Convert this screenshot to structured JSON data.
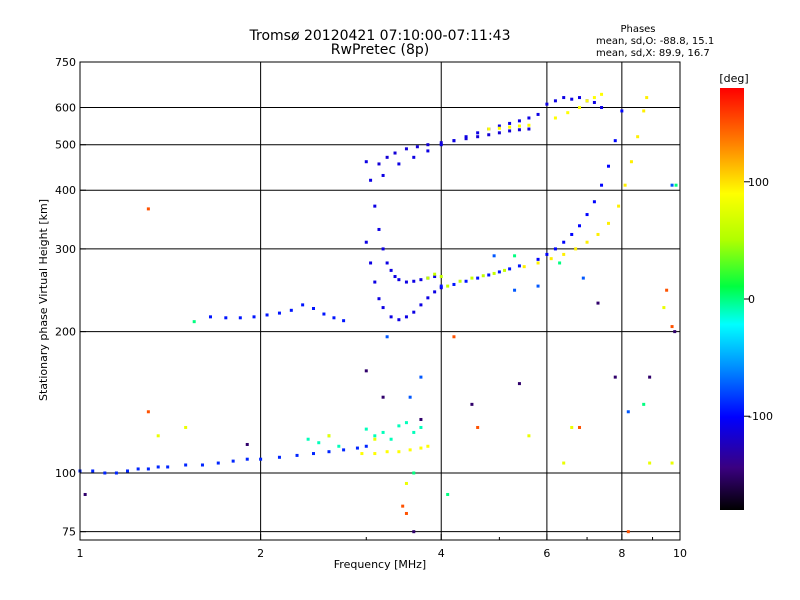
{
  "chart_data": {
    "type": "scatter",
    "title": "Tromsø 20120421 07:10:00-07:11:43",
    "subtitle": "RwPretec (8p)",
    "phases_header": "Phases",
    "phases_o": "mean, sd,O:  -88.8,  15.1",
    "phases_x": "mean, sd,X:   89.9,  16.7",
    "xlabel": "Frequency [MHz]",
    "ylabel": "Stationary phase Virtual Height [km]",
    "x_scale": "log",
    "y_scale": "log",
    "xlim": [
      1,
      10
    ],
    "ylim": [
      72,
      750
    ],
    "x_ticks": [
      {
        "v": 1,
        "label": "1"
      },
      {
        "v": 2,
        "label": "2"
      },
      {
        "v": 4,
        "label": "4"
      },
      {
        "v": 6,
        "label": "6"
      },
      {
        "v": 8,
        "label": "8"
      },
      {
        "v": 10,
        "label": "10"
      }
    ],
    "y_ticks": [
      {
        "v": 75,
        "label": "75"
      },
      {
        "v": 100,
        "label": "100"
      },
      {
        "v": 200,
        "label": "200"
      },
      {
        "v": 300,
        "label": "300"
      },
      {
        "v": 400,
        "label": "400"
      },
      {
        "v": 500,
        "label": "500"
      },
      {
        "v": 600,
        "label": "600"
      },
      {
        "v": 750,
        "label": "750"
      }
    ],
    "grid": true,
    "colorbar": {
      "label": "[deg]",
      "range": [
        -180,
        180
      ],
      "ticks": [
        {
          "v": 100,
          "label": "100"
        },
        {
          "v": 0,
          "label": "0"
        },
        {
          "v": -100,
          "label": "-100"
        }
      ]
    },
    "series": [
      {
        "phase": -90,
        "x": [
          1.0,
          1.05,
          1.1,
          1.15,
          1.2,
          1.25,
          1.3,
          1.35,
          1.4,
          1.5,
          1.6,
          1.7,
          1.8,
          1.9,
          2.0,
          2.15,
          2.3,
          2.45,
          2.6,
          2.75,
          2.9,
          3.0
        ],
        "y": [
          101,
          101,
          100,
          100,
          101,
          102,
          102,
          103,
          103,
          104,
          104,
          105,
          106,
          107,
          107,
          108,
          109,
          110,
          111,
          112,
          113,
          114
        ]
      },
      {
        "phase": -95,
        "x": [
          1.65,
          1.75,
          1.85,
          1.95,
          2.05,
          2.15,
          2.25,
          2.35,
          2.45,
          2.55,
          2.65,
          2.75
        ],
        "y": [
          215,
          214,
          214,
          215,
          217,
          219,
          222,
          228,
          224,
          218,
          214,
          211
        ]
      },
      {
        "phase": -110,
        "x": [
          3.0,
          3.05,
          3.1,
          3.15,
          3.2,
          3.25,
          3.3,
          3.35,
          3.4,
          3.5,
          3.6,
          3.7,
          3.8,
          3.9
        ],
        "y": [
          460,
          420,
          370,
          330,
          300,
          280,
          270,
          262,
          258,
          255,
          256,
          258,
          260,
          262
        ]
      },
      {
        "phase": -110,
        "x": [
          3.0,
          3.05,
          3.1,
          3.15,
          3.2,
          3.3,
          3.4,
          3.5,
          3.6,
          3.7,
          3.8,
          3.9,
          4.0
        ],
        "y": [
          310,
          280,
          255,
          235,
          225,
          215,
          212,
          215,
          220,
          228,
          236,
          243,
          248
        ]
      },
      {
        "phase": -115,
        "x": [
          3.15,
          3.25,
          3.35,
          3.5,
          3.65,
          3.8,
          4.0,
          4.2,
          4.4,
          4.6,
          4.8,
          5.0,
          5.2,
          5.4,
          5.6
        ],
        "y": [
          455,
          470,
          480,
          490,
          495,
          500,
          505,
          510,
          515,
          520,
          525,
          530,
          535,
          538,
          540
        ]
      },
      {
        "phase": -110,
        "x": [
          3.2,
          3.4,
          3.6,
          3.8,
          4.0,
          4.2,
          4.4,
          4.6,
          4.8,
          5.0,
          5.2,
          5.4,
          5.6,
          5.8
        ],
        "y": [
          430,
          455,
          470,
          485,
          500,
          510,
          520,
          530,
          540,
          548,
          555,
          562,
          570,
          580
        ]
      },
      {
        "phase": -95,
        "x": [
          4.0,
          4.2,
          4.4,
          4.6,
          4.8,
          5.0,
          5.2,
          5.4
        ],
        "y": [
          250,
          252,
          256,
          260,
          264,
          268,
          272,
          276
        ]
      },
      {
        "phase": -100,
        "x": [
          5.8,
          6.0,
          6.2,
          6.4,
          6.6,
          6.8,
          7.0,
          7.2,
          7.4,
          7.6,
          7.8,
          8.0
        ],
        "y": [
          285,
          292,
          300,
          310,
          322,
          336,
          355,
          378,
          410,
          450,
          510,
          590
        ]
      },
      {
        "phase": -110,
        "x": [
          6.0,
          6.2,
          6.4,
          6.6,
          6.8,
          7.0,
          7.2,
          7.4
        ],
        "y": [
          610,
          620,
          630,
          625,
          630,
          620,
          615,
          600
        ]
      },
      {
        "phase": 95,
        "x": [
          5.5,
          5.8,
          6.1,
          6.4,
          6.7,
          7.0,
          7.3,
          7.6,
          7.9,
          8.1,
          8.3,
          8.5,
          8.7,
          8.8
        ],
        "y": [
          275,
          280,
          286,
          292,
          300,
          310,
          322,
          340,
          370,
          410,
          460,
          520,
          590,
          630
        ]
      },
      {
        "phase": 90,
        "x": [
          2.95,
          3.1,
          3.25,
          3.4,
          3.55,
          3.7,
          3.8
        ],
        "y": [
          110,
          110,
          111,
          111,
          112,
          113,
          114
        ]
      },
      {
        "phase": 90,
        "x": [
          4.8,
          5.0,
          5.2,
          5.4,
          5.6,
          6.2,
          6.5,
          6.8,
          7.0,
          7.2,
          7.4
        ],
        "y": [
          540,
          542,
          545,
          548,
          550,
          570,
          585,
          600,
          620,
          630,
          640
        ]
      },
      {
        "phase": 60,
        "x": [
          3.8,
          3.9,
          4.0,
          4.1,
          4.3,
          4.5,
          4.7,
          4.9,
          5.1
        ],
        "y": [
          260,
          265,
          262,
          250,
          256,
          260,
          263,
          266,
          270
        ]
      },
      {
        "phase": -10,
        "x": [
          2.4,
          2.5,
          2.6,
          2.7,
          3.0,
          3.1,
          3.2,
          3.3,
          3.4,
          3.5,
          3.6,
          3.7
        ],
        "y": [
          118,
          116,
          120,
          114,
          124,
          120,
          122,
          118,
          126,
          128,
          122,
          125
        ]
      },
      {
        "phase": 150,
        "x": [
          1.3,
          4.2,
          4.6,
          6.8,
          8.2,
          9.5,
          9.7,
          3.45,
          3.5,
          1.3
        ],
        "y": [
          365,
          195,
          125,
          125,
          75,
          245,
          205,
          85,
          82,
          135
        ]
      },
      {
        "phase": 80,
        "x": [
          1.35,
          2.6,
          3.1,
          5.6,
          6.4,
          6.6,
          8.9,
          9.4,
          9.7,
          1.5,
          3.5
        ],
        "y": [
          120,
          120,
          118,
          120,
          105,
          125,
          105,
          225,
          105,
          125,
          95
        ]
      },
      {
        "phase": -150,
        "x": [
          3.0,
          3.2,
          3.7,
          4.5,
          5.4,
          7.3,
          9.8,
          1.02,
          1.9,
          3.6,
          7.8,
          8.9
        ],
        "y": [
          165,
          145,
          130,
          140,
          155,
          230,
          200,
          90,
          115,
          75,
          160,
          160
        ]
      },
      {
        "phase": -75,
        "x": [
          3.25,
          3.55,
          3.7,
          4.9,
          5.3,
          8.2,
          9.7,
          5.8,
          6.9
        ],
        "y": [
          195,
          145,
          160,
          290,
          245,
          135,
          410,
          250,
          260
        ]
      },
      {
        "phase": 0,
        "x": [
          1.55,
          3.6,
          4.1,
          5.3,
          6.3,
          9.85,
          8.7
        ],
        "y": [
          210,
          100,
          90,
          290,
          280,
          410,
          140
        ]
      }
    ]
  }
}
